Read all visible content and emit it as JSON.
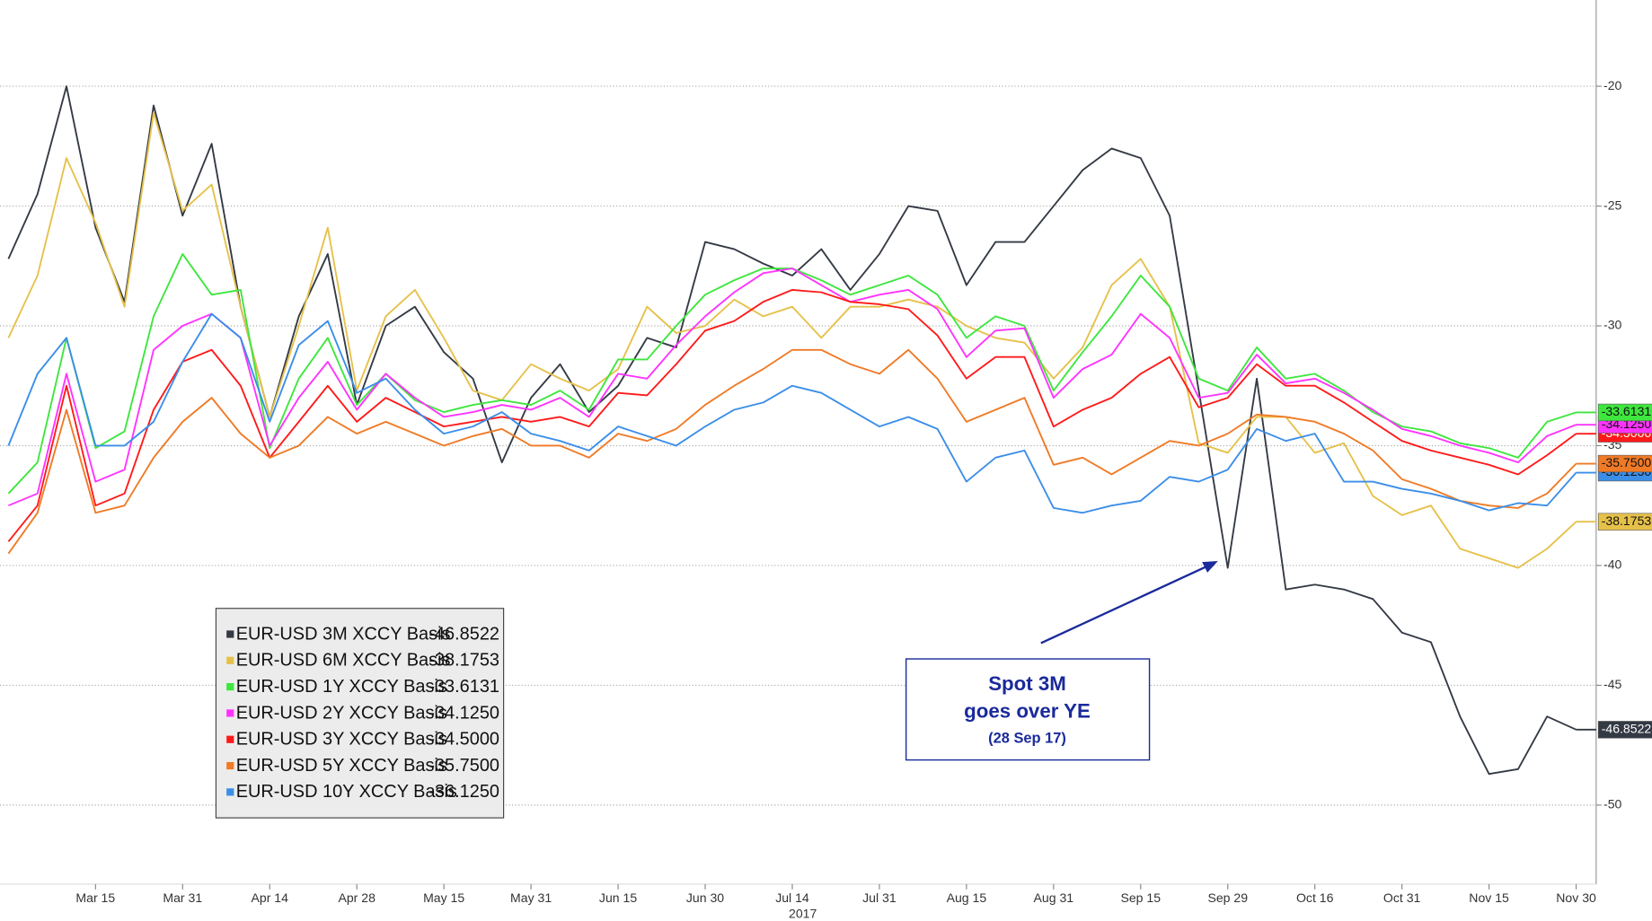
{
  "chart_data": {
    "type": "line",
    "categories": [
      null,
      null,
      null,
      "Mar 15",
      null,
      null,
      "Mar 31",
      null,
      null,
      "Apr 14",
      null,
      null,
      "Apr 28",
      null,
      null,
      "May 15",
      null,
      null,
      "May 31",
      null,
      null,
      "Jun 15",
      null,
      null,
      "Jun 30",
      null,
      null,
      "Jul 14",
      null,
      null,
      "Jul 31",
      null,
      null,
      "Aug 15",
      null,
      null,
      "Aug 31",
      null,
      null,
      "Sep 15",
      null,
      null,
      "Sep 29",
      null,
      null,
      "Oct 16",
      null,
      null,
      "Oct 31",
      null,
      null,
      "Nov 15",
      null,
      null,
      "Nov 30"
    ],
    "xlabel": "2017",
    "ylim": [
      -53.3,
      -16.4
    ],
    "yticks": [
      -20,
      -25,
      -30,
      -35,
      -40,
      -45,
      -50
    ],
    "y_axis_side": "right",
    "grid": true,
    "legend": "lower-left",
    "series": [
      {
        "name": "EUR-USD 3M XCCY Basis",
        "color": "#343a44",
        "value_label": "-46.8522",
        "values": [
          -27.2,
          -24.5,
          -20.0,
          -25.9,
          -29.0,
          -20.8,
          -25.4,
          -22.4,
          -29.2,
          -33.8,
          -29.6,
          -27.0,
          -33.3,
          -30.0,
          -29.2,
          -31.1,
          -32.2,
          -35.7,
          -33.0,
          -31.6,
          -33.6,
          -32.5,
          -30.5,
          -30.9,
          -26.5,
          -26.8,
          -27.4,
          -27.9,
          -26.8,
          -28.5,
          -27.0,
          -25.0,
          -25.2,
          -28.3,
          -26.5,
          -26.5,
          -25.0,
          -23.5,
          -22.6,
          -23.0,
          -25.4,
          -32.7,
          -40.1,
          -32.2,
          -41.0,
          -40.8,
          -41.0,
          -41.4,
          -42.8,
          -43.2,
          -46.3,
          -48.7,
          -48.5,
          -46.3,
          -46.8522
        ]
      },
      {
        "name": "EUR-USD 6M XCCY Basis",
        "color": "#e6c14a",
        "value_label": "-38.1753",
        "values": [
          -30.5,
          -27.9,
          -23.0,
          -25.7,
          -29.2,
          -21.1,
          -25.2,
          -24.1,
          -29.2,
          -33.8,
          -30.0,
          -25.9,
          -32.7,
          -29.6,
          -28.5,
          -30.5,
          -32.7,
          -33.1,
          -31.6,
          -32.2,
          -32.7,
          -31.8,
          -29.2,
          -30.3,
          -30.0,
          -28.9,
          -29.6,
          -29.2,
          -30.5,
          -29.2,
          -29.2,
          -28.9,
          -29.2,
          -30.0,
          -30.5,
          -30.7,
          -32.2,
          -30.9,
          -28.3,
          -27.2,
          -29.2,
          -34.9,
          -35.3,
          -33.8,
          -33.8,
          -35.3,
          -34.9,
          -37.1,
          -37.9,
          -37.5,
          -39.3,
          -39.7,
          -40.1,
          -39.3,
          -38.1753
        ]
      },
      {
        "name": "EUR-USD 1Y XCCY Basis",
        "color": "#3ee63e",
        "value_label": "-33.6131",
        "values": [
          -37.0,
          -35.7,
          -30.5,
          -35.1,
          -34.4,
          -29.6,
          -27.0,
          -28.7,
          -28.5,
          -35.1,
          -32.2,
          -30.5,
          -33.3,
          -32.0,
          -33.1,
          -33.6,
          -33.3,
          -33.1,
          -33.3,
          -32.7,
          -33.5,
          -31.4,
          -31.4,
          -30.0,
          -28.7,
          -28.1,
          -27.6,
          -27.6,
          -28.1,
          -28.7,
          -28.3,
          -27.9,
          -28.7,
          -30.5,
          -29.6,
          -30.0,
          -32.7,
          -31.1,
          -29.6,
          -27.9,
          -29.2,
          -32.2,
          -32.7,
          -30.9,
          -32.2,
          -32.0,
          -32.7,
          -33.6,
          -34.2,
          -34.4,
          -34.9,
          -35.1,
          -35.5,
          -34.0,
          -33.6131
        ]
      },
      {
        "name": "EUR-USD 2Y XCCY Basis",
        "color": "#ff33ff",
        "value_label": "-34.1250",
        "values": [
          -37.5,
          -37.0,
          -32.0,
          -36.5,
          -36.0,
          -31.0,
          -30.0,
          -29.5,
          -30.5,
          -35.0,
          -33.0,
          -31.5,
          -33.5,
          -32.0,
          -33.0,
          -33.8,
          -33.6,
          -33.3,
          -33.5,
          -33.0,
          -33.8,
          -32.0,
          -32.2,
          -30.8,
          -29.6,
          -28.6,
          -27.8,
          -27.6,
          -28.3,
          -29.0,
          -28.7,
          -28.5,
          -29.3,
          -31.3,
          -30.2,
          -30.1,
          -33.0,
          -31.8,
          -31.2,
          -29.5,
          -30.5,
          -33.0,
          -32.8,
          -31.2,
          -32.4,
          -32.2,
          -32.8,
          -33.5,
          -34.3,
          -34.6,
          -35.0,
          -35.3,
          -35.7,
          -34.6,
          -34.125
        ]
      },
      {
        "name": "EUR-USD 3Y XCCY Basis",
        "color": "#ff1a1a",
        "value_label": "-34.5000",
        "values": [
          -39.0,
          -37.5,
          -32.5,
          -37.5,
          -37.0,
          -33.5,
          -31.5,
          -31.0,
          -32.5,
          -35.5,
          -34.0,
          -32.5,
          -34.0,
          -33.0,
          -33.6,
          -34.2,
          -34.0,
          -33.8,
          -34.0,
          -33.8,
          -34.2,
          -32.8,
          -32.9,
          -31.6,
          -30.2,
          -29.8,
          -29.0,
          -28.5,
          -28.6,
          -29.0,
          -29.1,
          -29.3,
          -30.4,
          -32.2,
          -31.3,
          -31.3,
          -34.2,
          -33.5,
          -33.0,
          -32.0,
          -31.3,
          -33.4,
          -33.0,
          -31.6,
          -32.5,
          -32.5,
          -33.2,
          -34.0,
          -34.8,
          -35.2,
          -35.5,
          -35.8,
          -36.2,
          -35.4,
          -34.5
        ]
      },
      {
        "name": "EUR-USD 5Y XCCY Basis",
        "color": "#f07a26",
        "value_label": "-35.7500",
        "values": [
          -39.5,
          -37.8,
          -33.5,
          -37.8,
          -37.5,
          -35.5,
          -34.0,
          -33.0,
          -34.5,
          -35.5,
          -35.0,
          -33.8,
          -34.5,
          -34.0,
          -34.5,
          -35.0,
          -34.6,
          -34.3,
          -35.0,
          -35.0,
          -35.5,
          -34.5,
          -34.8,
          -34.3,
          -33.3,
          -32.5,
          -31.8,
          -31.0,
          -31.0,
          -31.6,
          -32.0,
          -31.0,
          -32.2,
          -34.0,
          -33.5,
          -33.0,
          -35.8,
          -35.5,
          -36.2,
          -35.5,
          -34.8,
          -35.0,
          -34.5,
          -33.7,
          -33.8,
          -34.0,
          -34.5,
          -35.2,
          -36.4,
          -36.8,
          -37.3,
          -37.5,
          -37.6,
          -37.0,
          -35.75
        ]
      },
      {
        "name": "EUR-USD 10Y XCCY Basis",
        "color": "#3b8ee8",
        "value_label": "-36.1250",
        "values": [
          -35.0,
          -32.0,
          -30.5,
          -35.0,
          -35.0,
          -34.0,
          -31.5,
          -29.5,
          -30.5,
          -34.0,
          -30.8,
          -29.8,
          -32.8,
          -32.2,
          -33.5,
          -34.5,
          -34.2,
          -33.6,
          -34.5,
          -34.8,
          -35.2,
          -34.2,
          -34.6,
          -35.0,
          -34.2,
          -33.5,
          -33.2,
          -32.5,
          -32.8,
          -33.5,
          -34.2,
          -33.8,
          -34.3,
          -36.5,
          -35.5,
          -35.2,
          -37.6,
          -37.8,
          -37.5,
          -37.3,
          -36.3,
          -36.5,
          -36.0,
          -34.3,
          -34.8,
          -34.5,
          -36.5,
          -36.5,
          -36.8,
          -37.0,
          -37.3,
          -37.7,
          -37.4,
          -37.5,
          -36.125
        ]
      }
    ],
    "annotations": [
      {
        "lines": [
          "Spot 3M",
          "goes over YE",
          "(28 Sep 17)"
        ]
      }
    ]
  }
}
